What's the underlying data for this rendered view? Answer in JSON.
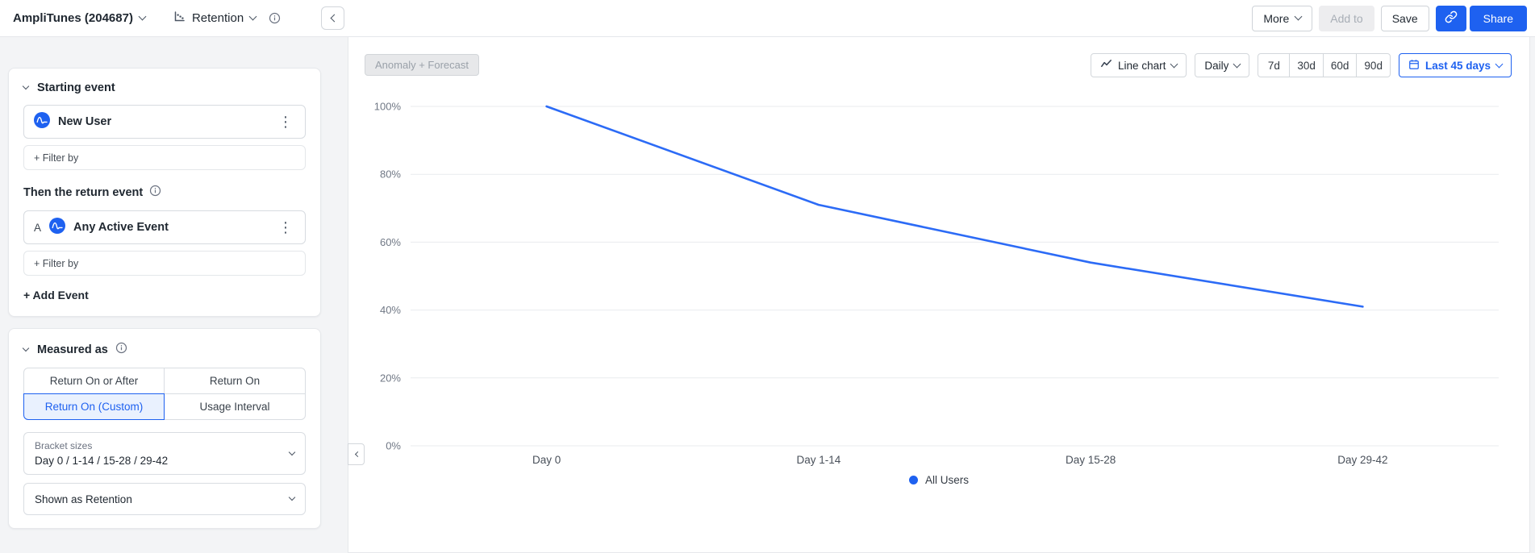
{
  "header": {
    "project_label": "AmpliTunes (204687)",
    "analysis_type": "Retention",
    "more_label": "More",
    "add_to_label": "Add to",
    "save_label": "Save",
    "share_label": "Share"
  },
  "sidebar": {
    "starting_event": {
      "title": "Starting event",
      "event_name": "New User",
      "filter_label": "+ Filter by"
    },
    "return_event": {
      "title": "Then the return event",
      "event_letter": "A",
      "event_name": "Any Active Event",
      "filter_label": "+ Filter by",
      "add_event_label": "+ Add Event"
    },
    "measured_as": {
      "title": "Measured as",
      "options": [
        "Return On or After",
        "Return On",
        "Return On (Custom)",
        "Usage Interval"
      ],
      "selected_option": "Return On (Custom)",
      "bracket_label": "Bracket sizes",
      "bracket_value": "Day 0 / 1-14 / 15-28 / 29-42",
      "shown_as_label": "Shown as Retention"
    }
  },
  "chart_toolbar": {
    "anomaly_forecast_label": "Anomaly + Forecast",
    "chart_type_label": "Line chart",
    "granularity_label": "Daily",
    "quick_ranges": [
      "7d",
      "30d",
      "60d",
      "90d"
    ],
    "date_range_label": "Last 45 days"
  },
  "chart_data": {
    "type": "line",
    "title": "Retention",
    "categories": [
      "Day 0",
      "Day 1-14",
      "Day 15-28",
      "Day 29-42"
    ],
    "series": [
      {
        "name": "All Users",
        "values": [
          100,
          71,
          54,
          41
        ]
      }
    ],
    "y_ticks": [
      "0%",
      "20%",
      "40%",
      "60%",
      "80%",
      "100%"
    ],
    "ylim": [
      0,
      100
    ],
    "unit": "%",
    "grid": true,
    "legend_position": "bottom",
    "line_color": "#2c6bf6"
  },
  "colors": {
    "accent_blue": "#1e61f0",
    "selected_bg": "#e9f1fe",
    "page_background": "#f3f4f6"
  }
}
